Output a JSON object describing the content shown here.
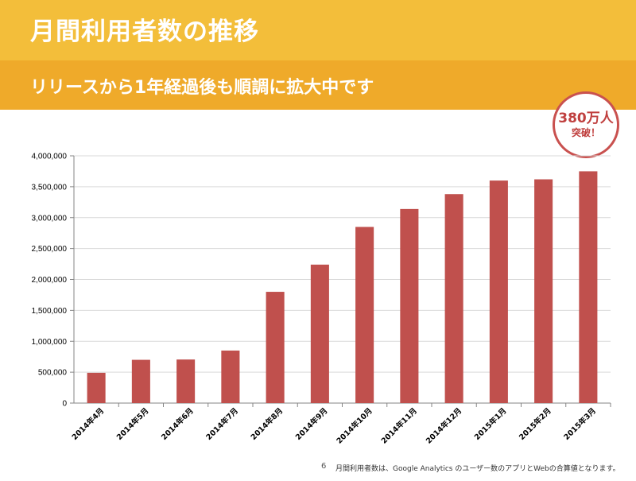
{
  "header": {
    "title": "月間利用者数の推移",
    "subtitle": "リリースから1年経過後も順調に拡大中です"
  },
  "badge": {
    "line1": "380万人",
    "line2": "突破！"
  },
  "footer": {
    "page_number": "6",
    "note": "月間利用者数は、Google Analytics のユーザー数のアプリとWebの合算値となります。"
  },
  "colors": {
    "title_bar": "#F3BE3A",
    "subtitle_bar": "#EFAA2A",
    "bar": "#C0504D",
    "badge_border": "#C9514F"
  },
  "chart_data": {
    "type": "bar",
    "categories": [
      "2014年4月",
      "2014年5月",
      "2014年6月",
      "2014年7月",
      "2014年8月",
      "2014年9月",
      "2014年10月",
      "2014年11月",
      "2014年12月",
      "2015年1月",
      "2015年2月",
      "2015年3月"
    ],
    "values": [
      490000,
      700000,
      705000,
      850000,
      1800000,
      2240000,
      2850000,
      3140000,
      3380000,
      3600000,
      3620000,
      3750000
    ],
    "ylim": [
      0,
      4000000
    ],
    "yticks": [
      0,
      500000,
      1000000,
      1500000,
      2000000,
      2500000,
      3000000,
      3500000,
      4000000
    ],
    "ytick_labels": [
      "0",
      "500,000",
      "1,000,000",
      "1,500,000",
      "2,000,000",
      "2,500,000",
      "3,000,000",
      "3,500,000",
      "4,000,000"
    ],
    "grid": true,
    "legend": false
  }
}
